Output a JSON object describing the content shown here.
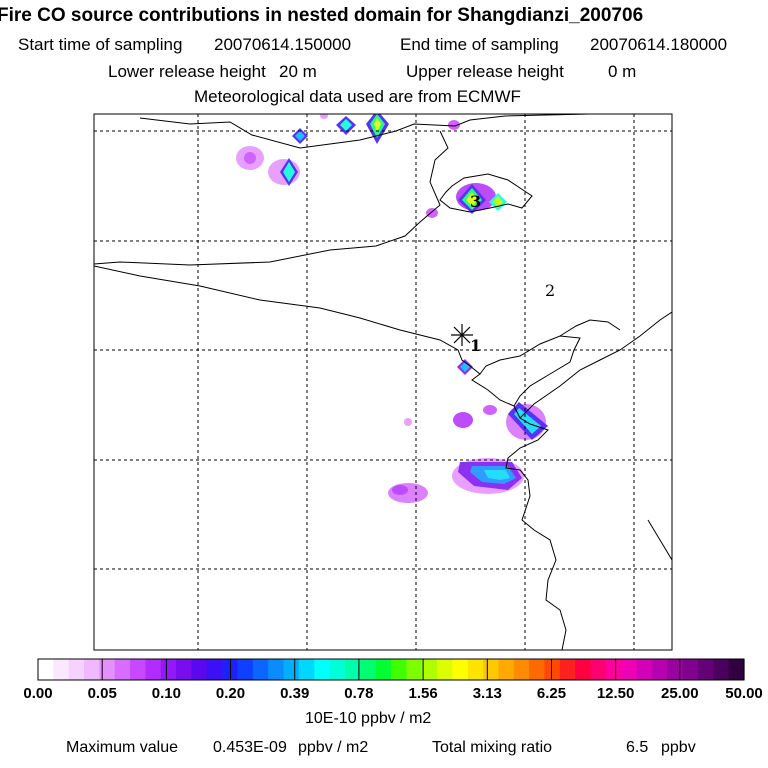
{
  "header": {
    "title": "Fire CO source contributions in nested domain for Shangdianzi_200706",
    "start_label": "Start time of sampling",
    "start_value": "20070614.150000",
    "end_label": "End time of sampling",
    "end_value": "20070614.180000",
    "lower_label": "Lower release height",
    "lower_value": "20 m",
    "upper_label": "Upper release height",
    "upper_value": "0 m",
    "met_line": "Meteorological data used are from ECMWF"
  },
  "chart_data": {
    "type": "heatmap",
    "title": "Fire CO source contributions in nested domain for Shangdianzi_200706",
    "map_labels": [
      "1",
      "2",
      "3"
    ],
    "receptor_marker": "asterisk",
    "color_scale": {
      "tick_labels": [
        "0.00",
        "0.05",
        "0.10",
        "0.20",
        "0.39",
        "0.78",
        "1.56",
        "3.13",
        "6.25",
        "12.50",
        "25.00",
        "50.00"
      ],
      "unit": "10E-10 ppbv / m2",
      "colors": [
        "#ffffff",
        "#fbe8ff",
        "#f6d2ff",
        "#efb8ff",
        "#e590ff",
        "#d76cff",
        "#c848ff",
        "#b22cff",
        "#9418f8",
        "#7a0cf0",
        "#5a08f0",
        "#3c10f4",
        "#2020ff",
        "#1040ff",
        "#0a66ff",
        "#0a8cff",
        "#00b0ff",
        "#00d8ff",
        "#00ffff",
        "#00ffd8",
        "#00ffaa",
        "#00ff70",
        "#00ff30",
        "#40ff00",
        "#7cff00",
        "#b0ff00",
        "#dcff00",
        "#ffff00",
        "#ffe400",
        "#ffc800",
        "#ffaa00",
        "#ff8c00",
        "#ff6a00",
        "#ff4800",
        "#ff2020",
        "#ff0040",
        "#ff0070",
        "#ff00a0",
        "#f000b4",
        "#d400b8",
        "#b800b0",
        "#9c00a0",
        "#800090",
        "#640078",
        "#4a005c",
        "#300040"
      ]
    },
    "max_value": "0.453E-09",
    "total_mixing_ratio": "6.5"
  },
  "footer": {
    "max_label": "Maximum value",
    "max_unit": "ppbv / m2",
    "total_label": "Total mixing ratio",
    "total_unit": "ppbv"
  }
}
